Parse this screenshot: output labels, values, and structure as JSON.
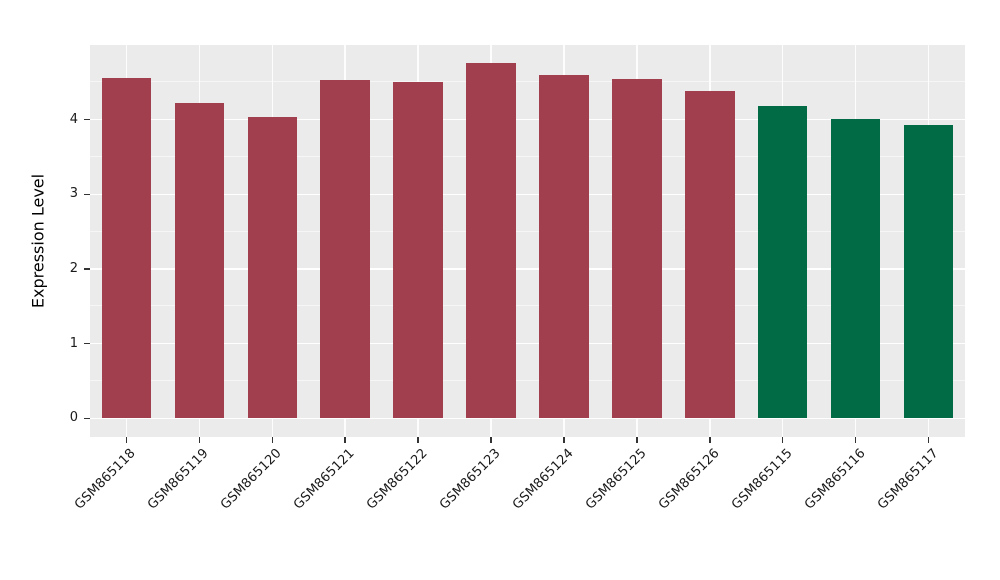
{
  "chart_data": {
    "type": "bar",
    "title": "",
    "categories": [
      "GSM865118",
      "GSM865119",
      "GSM865120",
      "GSM865121",
      "GSM865122",
      "GSM865123",
      "GSM865124",
      "GSM865125",
      "GSM865126",
      "GSM865115",
      "GSM865116",
      "GSM865117"
    ],
    "values": [
      4.56,
      4.23,
      4.03,
      4.53,
      4.5,
      4.76,
      4.6,
      4.54,
      4.38,
      4.19,
      4.01,
      3.93
    ],
    "bar_colors": [
      "#A23F4F",
      "#A23F4F",
      "#A23F4F",
      "#A23F4F",
      "#A23F4F",
      "#A23F4F",
      "#A23F4F",
      "#A23F4F",
      "#A23F4F",
      "#006B45",
      "#006B45",
      "#006B45"
    ],
    "xlabel": "",
    "ylabel": "Expression Level",
    "yticks": [
      0,
      1,
      2,
      3,
      4
    ],
    "minor_ticks": [
      0.5,
      1.5,
      2.5,
      3.5,
      4.5
    ],
    "ylim": [
      -0.25,
      5.0
    ],
    "panel_bg": "#EBEBEB",
    "grid_color": "#FFFFFF",
    "bar_width_fraction": 0.68,
    "legend_position": "none"
  }
}
